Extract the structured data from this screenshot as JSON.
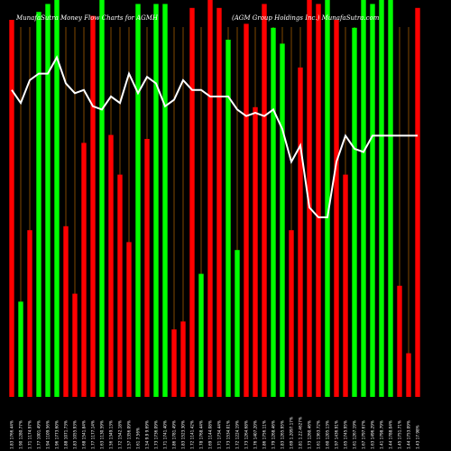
{
  "chart_data": {
    "type": "bar",
    "title": "MunafaSutra Money Flow Charts for AGMH (AGM Group Holdings Inc.) MunafaSutra.com",
    "title_parts": {
      "left": "MunafaSutra Money Flow Charts for AGMH",
      "right": "(AGM Group Holdings Inc.) MunafaSutra.com"
    },
    "ylim": [
      0,
      100
    ],
    "colors": {
      "up": "#00ff00",
      "down": "#ff0000",
      "line": "#ffffff",
      "grid": "#a05a00",
      "background": "#000000"
    },
    "categories": [
      "1.83 1766.44%",
      "1.90 1280.77%",
      "1.71 1174.97%",
      "1.77 1001.49%",
      "1.94 1109.56%",
      "1.96 1773.60%",
      "1.88 1071.73%",
      "1.83 1055.93%",
      "1.68 1541.84%",
      "1.77 1177.14%",
      "1.63 1130.59%",
      "1.56 1349.13%",
      "1.72 1542.18%",
      "1.57 1356.09%",
      "1.61 7.56%",
      "1.54 9.9 9.69%",
      "1.73 1736.09%",
      "1.71 1741.40%",
      "1.86 1781.49%",
      "1.83 1523.30%",
      "1.72 1141.42%",
      "1.78 1768.44%",
      "1.69 1144.08%",
      "1.71 1734.44%",
      "1.73 1534.01%",
      "1.72 1224.19%",
      "1.73 1264.68%",
      "1.76 1407.20%",
      "1.86 1756.11%",
      "1.79 1268.46%",
      "1.83 1265.95%",
      "1.69 1.2097.17%",
      "1.81 1.22.4627%",
      "1.73 1260.46%",
      "1.61 1363.72%",
      "1.60 1205.13%",
      "1.97 1436.91%",
      "1.65 1745.95%",
      "1.61 1267.19%",
      "1.67 1797.67%",
      "1.63 1496.29%",
      "1.41 1798.79%",
      "1.44 1788.04%",
      "1.45 1751.71%",
      "1.44 1753.09%",
      "1.43 17.98%"
    ],
    "series": [
      {
        "values": [
          95,
          24,
          42,
          97,
          99,
          100,
          43,
          26,
          64,
          96,
          100,
          66,
          56,
          39,
          99,
          65,
          99,
          99,
          17,
          19,
          98,
          31,
          100,
          98,
          90,
          37,
          94,
          73,
          99,
          93,
          89,
          42,
          83,
          100,
          99,
          100,
          95,
          56,
          93,
          100,
          99,
          100,
          100,
          28,
          11,
          98
        ],
        "direction": [
          "down",
          "up",
          "down",
          "up",
          "up",
          "up",
          "down",
          "down",
          "down",
          "down",
          "up",
          "down",
          "down",
          "down",
          "up",
          "down",
          "up",
          "up",
          "down",
          "down",
          "down",
          "up",
          "down",
          "down",
          "up",
          "up",
          "down",
          "down",
          "down",
          "up",
          "up",
          "down",
          "down",
          "down",
          "down",
          "up",
          "down",
          "down",
          "up",
          "up",
          "up",
          "up",
          "up",
          "down",
          "down",
          "down"
        ]
      },
      {
        "type": "line",
        "values": [
          94,
          90,
          97,
          99,
          99,
          104,
          96,
          93,
          94,
          89,
          88,
          92,
          90,
          99,
          93,
          98,
          96,
          89,
          91,
          97,
          94,
          94,
          92,
          92,
          92,
          88,
          86,
          87,
          86,
          88,
          82,
          72,
          77,
          58,
          55,
          55,
          72,
          80,
          76,
          75,
          80,
          80,
          80,
          80,
          80,
          80
        ]
      }
    ]
  }
}
